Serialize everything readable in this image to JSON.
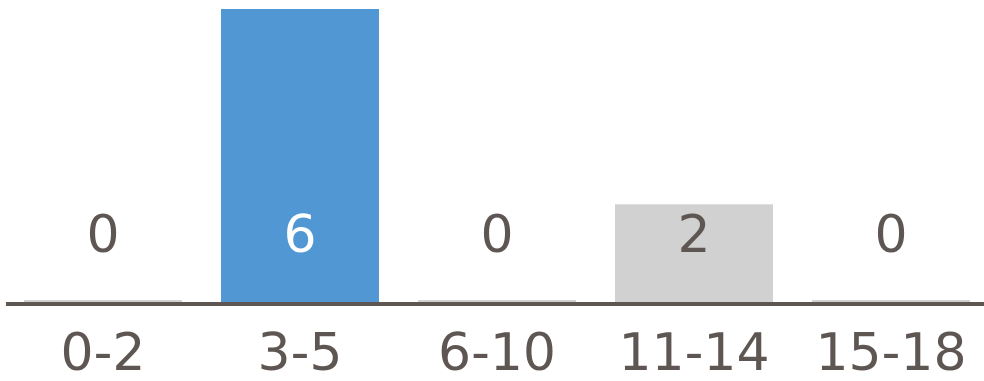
{
  "chart_data": {
    "type": "bar",
    "title": "",
    "xlabel": "",
    "ylabel": "",
    "categories": [
      "0-2",
      "3-5",
      "6-10",
      "11-14",
      "15-18"
    ],
    "values": [
      0,
      6,
      0,
      2,
      0
    ],
    "data_labels": [
      "0",
      "6",
      "0",
      "2",
      "0"
    ],
    "ylim": [
      0,
      6
    ],
    "grid": false,
    "legend": "none",
    "colors": {
      "highlight_bar": "#5097d3",
      "other_bar": "#d1d1d2",
      "baseline": "#5e5653",
      "label_dark": "#5e5653",
      "label_on_highlight": "#ffffff"
    },
    "highlight_index": 1
  }
}
